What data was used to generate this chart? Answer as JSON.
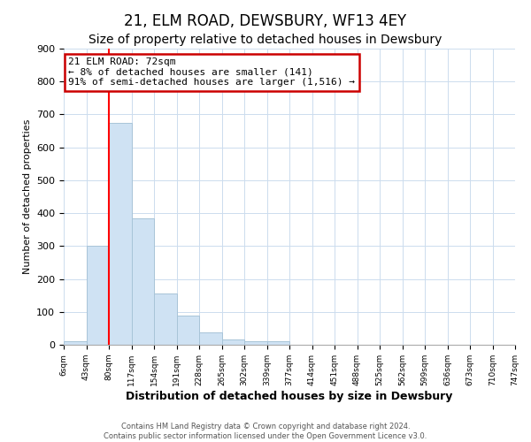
{
  "title": "21, ELM ROAD, DEWSBURY, WF13 4EY",
  "subtitle": "Size of property relative to detached houses in Dewsbury",
  "xlabel": "Distribution of detached houses by size in Dewsbury",
  "ylabel": "Number of detached properties",
  "bar_values": [
    10,
    300,
    675,
    383,
    155,
    90,
    38,
    15,
    12,
    10,
    0,
    0,
    0,
    0,
    0,
    0,
    0,
    0,
    0,
    0
  ],
  "bar_color": "#cfe2f3",
  "bar_edge_color": "#a8c4d8",
  "x_tick_labels": [
    "6sqm",
    "43sqm",
    "80sqm",
    "117sqm",
    "154sqm",
    "191sqm",
    "228sqm",
    "265sqm",
    "302sqm",
    "339sqm",
    "377sqm",
    "414sqm",
    "451sqm",
    "488sqm",
    "525sqm",
    "562sqm",
    "599sqm",
    "636sqm",
    "673sqm",
    "710sqm",
    "747sqm"
  ],
  "ylim": [
    0,
    900
  ],
  "yticks": [
    0,
    100,
    200,
    300,
    400,
    500,
    600,
    700,
    800,
    900
  ],
  "red_line_bar_index": 2,
  "annotation_title": "21 ELM ROAD: 72sqm",
  "annotation_line1": "← 8% of detached houses are smaller (141)",
  "annotation_line2": "91% of semi-detached houses are larger (1,516) →",
  "annotation_box_color": "#ffffff",
  "annotation_box_edge": "#cc0000",
  "footer1": "Contains HM Land Registry data © Crown copyright and database right 2024.",
  "footer2": "Contains public sector information licensed under the Open Government Licence v3.0.",
  "background_color": "#ffffff",
  "grid_color": "#ccdcee",
  "title_fontsize": 12,
  "subtitle_fontsize": 10
}
